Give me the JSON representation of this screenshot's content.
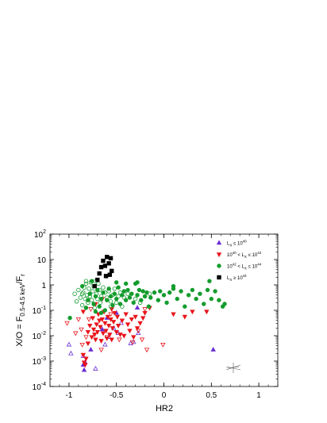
{
  "chart_data": {
    "type": "scatter",
    "xlabel": "HR2",
    "ylabel": "X/O = F_0.5-4.5 keV / F_r",
    "xlim": [
      -1.2,
      1.2
    ],
    "ylim_log10": [
      -4,
      2
    ],
    "y_scale": "log",
    "x_ticks": [
      {
        "value": -1,
        "label": "-1"
      },
      {
        "value": -0.5,
        "label": "-0.5"
      },
      {
        "value": 0,
        "label": "0"
      },
      {
        "value": 0.5,
        "label": "0.5"
      },
      {
        "value": 1,
        "label": "1"
      }
    ],
    "y_ticks": [
      {
        "exp": -4,
        "base": "10",
        "sup": "-4"
      },
      {
        "exp": -3,
        "base": "10",
        "sup": "-3"
      },
      {
        "exp": -2,
        "base": "10",
        "sup": "-2"
      },
      {
        "exp": -1,
        "base": "10",
        "sup": "-1"
      },
      {
        "exp": 0,
        "base": "1",
        "sup": ""
      },
      {
        "exp": 1,
        "base": "10",
        "sup": ""
      },
      {
        "exp": 2,
        "base": "10",
        "sup": "2"
      }
    ],
    "legend_position": "top-right",
    "grid": false,
    "series": [
      {
        "label_main": "L",
        "label_sub": "X",
        "label_rest": " ≤ 10",
        "label_sup": "40",
        "marker": "triangle-up",
        "color": "#6a2fd6",
        "filled_points": [
          [
            -0.85,
            -3.15
          ],
          [
            -0.84,
            -3.35
          ],
          [
            -0.83,
            -3.05
          ],
          [
            -0.77,
            -2.55
          ],
          [
            -0.65,
            -1.75
          ],
          [
            -0.6,
            -1.3
          ],
          [
            -0.5,
            -1.1
          ],
          [
            -0.28,
            -0.9
          ],
          [
            0.52,
            -2.55
          ]
        ],
        "open_points": [
          [
            -1.0,
            -2.35
          ],
          [
            -0.98,
            -2.7
          ],
          [
            -0.85,
            -2.8
          ],
          [
            -0.72,
            -3.3
          ],
          [
            -0.62,
            -2.35
          ],
          [
            -0.58,
            -2.05
          ],
          [
            -0.53,
            -1.7
          ],
          [
            -0.48,
            -1.9
          ],
          [
            -0.35,
            -2.3
          ],
          [
            -0.32,
            -2.25
          ],
          [
            -0.45,
            -1.5
          ],
          [
            -0.27,
            -1.9
          ]
        ]
      },
      {
        "label_main": "10",
        "label_sup_a": "40",
        "label_mid": " < L",
        "label_sub": "X",
        "label_rest": " ≤ 10",
        "label_sup": "42",
        "marker": "triangle-down",
        "color": "#e8151b",
        "filled_points": [
          [
            -0.85,
            -2.75
          ],
          [
            -0.84,
            -3.05
          ],
          [
            -0.83,
            -3.15
          ],
          [
            -0.82,
            -2.9
          ],
          [
            -0.8,
            -2.3
          ],
          [
            -0.8,
            -1.85
          ],
          [
            -0.78,
            -1.6
          ],
          [
            -0.76,
            -2.05
          ],
          [
            -0.75,
            -1.3
          ],
          [
            -0.74,
            -1.75
          ],
          [
            -0.73,
            -1.95
          ],
          [
            -0.72,
            -2.15
          ],
          [
            -0.71,
            -1.55
          ],
          [
            -0.7,
            -1.85
          ],
          [
            -0.69,
            -1.15
          ],
          [
            -0.68,
            -1.4
          ],
          [
            -0.67,
            -1.65
          ],
          [
            -0.66,
            -2.2
          ],
          [
            -0.65,
            -1.35
          ],
          [
            -0.64,
            -1.9
          ],
          [
            -0.63,
            -1.05
          ],
          [
            -0.62,
            -1.5
          ],
          [
            -0.61,
            -1.8
          ],
          [
            -0.6,
            -2.1
          ],
          [
            -0.59,
            -1.25
          ],
          [
            -0.58,
            -1.6
          ],
          [
            -0.57,
            -1.95
          ],
          [
            -0.56,
            -1.35
          ],
          [
            -0.55,
            -2.15
          ],
          [
            -0.54,
            -1.7
          ],
          [
            -0.53,
            -1.45
          ],
          [
            -0.52,
            -1.1
          ],
          [
            -0.5,
            -1.85
          ],
          [
            -0.49,
            -1.25
          ],
          [
            -0.48,
            -1.6
          ],
          [
            -0.46,
            -1.95
          ],
          [
            -0.44,
            -1.4
          ],
          [
            -0.42,
            -2.0
          ],
          [
            -0.4,
            -1.15
          ],
          [
            -0.38,
            -1.55
          ],
          [
            -0.36,
            -1.8
          ],
          [
            -0.34,
            -1.35
          ],
          [
            -0.32,
            -2.05
          ],
          [
            -0.3,
            -1.25
          ],
          [
            -0.28,
            -1.7
          ],
          [
            -0.25,
            -1.5
          ],
          [
            -0.22,
            -1.3
          ],
          [
            -0.2,
            -1.1
          ],
          [
            -0.15,
            -0.9
          ],
          [
            -0.72,
            -0.75
          ],
          [
            -0.65,
            -0.55
          ],
          [
            -0.6,
            0.35
          ],
          [
            -0.55,
            -0.95
          ],
          [
            0.1,
            -1.15
          ],
          [
            0.22,
            -1.25
          ],
          [
            0.3,
            -1.05
          ],
          [
            0.45,
            -1.05
          ],
          [
            -0.85,
            -1.05
          ]
        ],
        "open_points": [
          [
            -1.02,
            -1.5
          ],
          [
            -0.93,
            -1.9
          ],
          [
            -0.9,
            -1.35
          ],
          [
            -0.87,
            -1.75
          ],
          [
            -0.86,
            -2.35
          ],
          [
            -0.82,
            -2.05
          ],
          [
            -0.79,
            -1.35
          ],
          [
            -0.77,
            -0.95
          ],
          [
            -0.66,
            -2.55
          ],
          [
            -0.6,
            -2.05
          ],
          [
            -0.56,
            -1.15
          ],
          [
            -0.47,
            -2.15
          ],
          [
            -0.33,
            -2.25
          ],
          [
            -0.27,
            -1.8
          ],
          [
            -0.23,
            -2.15
          ],
          [
            -0.2,
            -0.95
          ],
          [
            -0.18,
            -2.55
          ],
          [
            -0.01,
            -2.35
          ]
        ]
      },
      {
        "label_main": "10",
        "label_sup_a": "42",
        "label_mid": " < L",
        "label_sub": "X",
        "label_rest": " ≤ 10",
        "label_sup": "44",
        "marker": "circle",
        "color": "#139c2d",
        "filled_points": [
          [
            -0.99,
            -1.3
          ],
          [
            -0.86,
            -0.05
          ],
          [
            -0.82,
            -0.9
          ],
          [
            -0.8,
            -0.6
          ],
          [
            -0.78,
            -0.35
          ],
          [
            -0.76,
            0.15
          ],
          [
            -0.74,
            -0.75
          ],
          [
            -0.72,
            -0.45
          ],
          [
            -0.7,
            -0.2
          ],
          [
            -0.68,
            -0.85
          ],
          [
            -0.66,
            -0.55
          ],
          [
            -0.64,
            -0.3
          ],
          [
            -0.62,
            -1.0
          ],
          [
            -0.6,
            -0.6
          ],
          [
            -0.58,
            -0.15
          ],
          [
            -0.56,
            -0.45
          ],
          [
            -0.54,
            -0.8
          ],
          [
            -0.52,
            -0.35
          ],
          [
            -0.5,
            -0.55
          ],
          [
            -0.48,
            -0.1
          ],
          [
            -0.46,
            -0.75
          ],
          [
            -0.44,
            -0.4
          ],
          [
            -0.42,
            -0.25
          ],
          [
            -0.4,
            -0.6
          ],
          [
            -0.38,
            -0.2
          ],
          [
            -0.36,
            -0.5
          ],
          [
            -0.34,
            -0.35
          ],
          [
            -0.32,
            -0.7
          ],
          [
            -0.3,
            0.05
          ],
          [
            -0.28,
            -0.4
          ],
          [
            -0.26,
            -0.2
          ],
          [
            -0.24,
            -0.6
          ],
          [
            -0.22,
            -0.25
          ],
          [
            -0.2,
            -0.45
          ],
          [
            -0.18,
            -0.3
          ],
          [
            -0.16,
            -0.85
          ],
          [
            -0.14,
            -0.5
          ],
          [
            -0.1,
            -0.3
          ],
          [
            -0.06,
            -0.6
          ],
          [
            -0.04,
            -0.25
          ],
          [
            0.0,
            -0.4
          ],
          [
            0.03,
            -0.7
          ],
          [
            0.06,
            -0.3
          ],
          [
            0.1,
            -0.15
          ],
          [
            0.14,
            -0.55
          ],
          [
            0.18,
            -0.25
          ],
          [
            0.22,
            -0.85
          ],
          [
            0.26,
            -0.4
          ],
          [
            0.3,
            -0.2
          ],
          [
            0.34,
            -0.55
          ],
          [
            0.38,
            -0.35
          ],
          [
            0.42,
            -0.75
          ],
          [
            0.46,
            -0.2
          ],
          [
            0.48,
            0.15
          ],
          [
            0.5,
            -0.55
          ],
          [
            0.54,
            -0.25
          ],
          [
            0.58,
            -0.6
          ],
          [
            0.62,
            -0.85
          ],
          [
            0.64,
            -0.75
          ],
          [
            -0.28,
            0.1
          ],
          [
            -0.5,
            0.1
          ],
          [
            -0.4,
            0.05
          ],
          [
            0.1,
            -0.05
          ],
          [
            -0.66,
            -1.1
          ],
          [
            -0.72,
            -1.05
          ]
        ],
        "open_points": [
          [
            -0.94,
            -0.35
          ],
          [
            -0.92,
            -0.65
          ],
          [
            -0.9,
            -0.2
          ],
          [
            -0.88,
            -0.5
          ],
          [
            -0.86,
            -0.8
          ],
          [
            -0.85,
            -0.3
          ],
          [
            -0.84,
            -0.1
          ],
          [
            -0.83,
            -0.55
          ],
          [
            -0.82,
            0.05
          ],
          [
            -0.81,
            -0.4
          ],
          [
            -0.8,
            -0.7
          ],
          [
            -0.79,
            -0.15
          ],
          [
            -0.78,
            -0.45
          ],
          [
            -0.77,
            0.1
          ],
          [
            -0.76,
            -0.6
          ],
          [
            -0.75,
            -0.25
          ],
          [
            -0.74,
            -0.05
          ],
          [
            -0.73,
            -0.9
          ],
          [
            -0.72,
            0.15
          ],
          [
            -0.71,
            -0.35
          ],
          [
            -0.7,
            -0.55
          ],
          [
            -0.69,
            0.05
          ],
          [
            -0.68,
            -0.2
          ],
          [
            -0.67,
            -0.7
          ],
          [
            -0.66,
            -0.45
          ],
          [
            -0.64,
            -0.1
          ],
          [
            -0.62,
            -0.3
          ],
          [
            -0.6,
            -0.5
          ],
          [
            -0.58,
            -0.25
          ],
          [
            -0.56,
            -0.65
          ],
          [
            -0.54,
            -0.4
          ],
          [
            -0.52,
            -0.15
          ],
          [
            -0.5,
            -0.7
          ],
          [
            -0.48,
            -0.45
          ],
          [
            -0.46,
            -0.3
          ],
          [
            -0.44,
            -0.85
          ],
          [
            -0.42,
            -0.5
          ],
          [
            -0.38,
            -0.35
          ],
          [
            -0.3,
            -0.55
          ],
          [
            -0.25,
            -0.7
          ],
          [
            -0.2,
            -0.45
          ],
          [
            -0.15,
            -0.35
          ],
          [
            -0.82,
            0.15
          ],
          [
            -0.86,
            -0.35
          ],
          [
            -0.56,
            -0.85
          ]
        ]
      },
      {
        "label_main": "L",
        "label_sub": "X",
        "label_rest": " ≥ 10",
        "label_sup": "44",
        "marker": "square",
        "color": "#000000",
        "filled_points": [
          [
            -0.73,
            -0.05
          ],
          [
            -0.68,
            0.45
          ],
          [
            -0.66,
            0.7
          ],
          [
            -0.64,
            0.95
          ],
          [
            -0.62,
            0.75
          ],
          [
            -0.6,
            1.1
          ],
          [
            -0.58,
            0.85
          ],
          [
            -0.56,
            1.05
          ],
          [
            -0.55,
            0.55
          ],
          [
            -0.57,
            0.4
          ],
          [
            -0.61,
            0.35
          ],
          [
            -0.7,
            0.2
          ]
        ],
        "open_points": []
      }
    ]
  }
}
